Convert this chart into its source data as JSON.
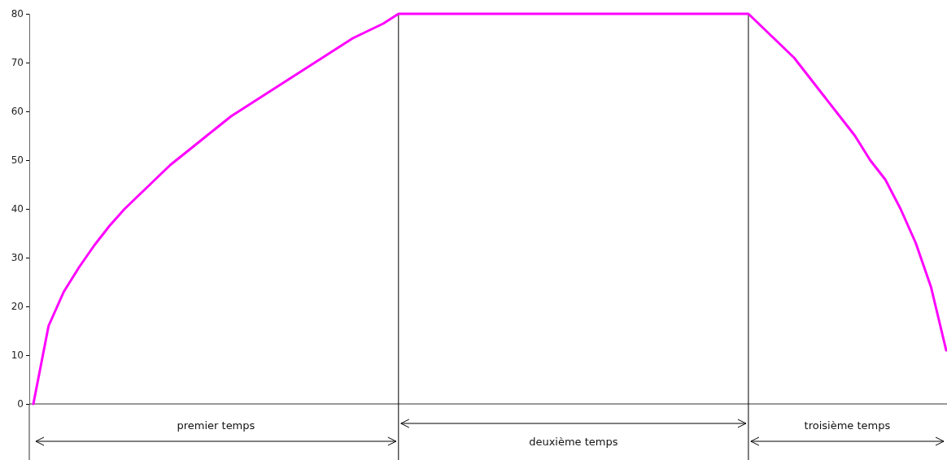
{
  "chart_data": {
    "type": "line",
    "tick_labels": "y",
    "grid": false,
    "marker": "none",
    "line_style": "solid",
    "categories": [
      null,
      null,
      null,
      null,
      null,
      null,
      null,
      null,
      null,
      null,
      null,
      null,
      null,
      null,
      null,
      null,
      null,
      null,
      null,
      null,
      null,
      null,
      null,
      null,
      null,
      null,
      null,
      null,
      null,
      null,
      null,
      null,
      null,
      null,
      null,
      null,
      null,
      null,
      null,
      null,
      null,
      null,
      null,
      null,
      null,
      null,
      null,
      null,
      null,
      null,
      null,
      null,
      null,
      null,
      null,
      null,
      null,
      null,
      null,
      null,
      null
    ],
    "series": [
      {
        "color": "#ff00ff",
        "values": [
          0,
          16,
          23,
          28,
          32.5,
          36.5,
          40,
          43,
          46,
          49,
          51.5,
          54,
          56.5,
          59,
          61,
          63,
          65,
          67,
          69,
          71,
          73,
          75,
          76.5,
          78,
          80,
          80,
          80,
          80,
          80,
          80,
          80,
          80,
          80,
          80,
          80,
          80,
          80,
          80,
          80,
          80,
          80,
          80,
          80,
          80,
          80,
          80,
          80,
          80,
          77,
          74,
          71,
          67,
          63,
          59,
          55,
          50,
          46,
          40,
          33,
          24,
          11
        ]
      }
    ],
    "ylim": [
      0,
      80
    ],
    "yticks": [
      0,
      10,
      20,
      30,
      40,
      50,
      60,
      70,
      80
    ],
    "annotations": [
      "premier temps",
      "deuxième temps",
      "troisième temps"
    ]
  }
}
